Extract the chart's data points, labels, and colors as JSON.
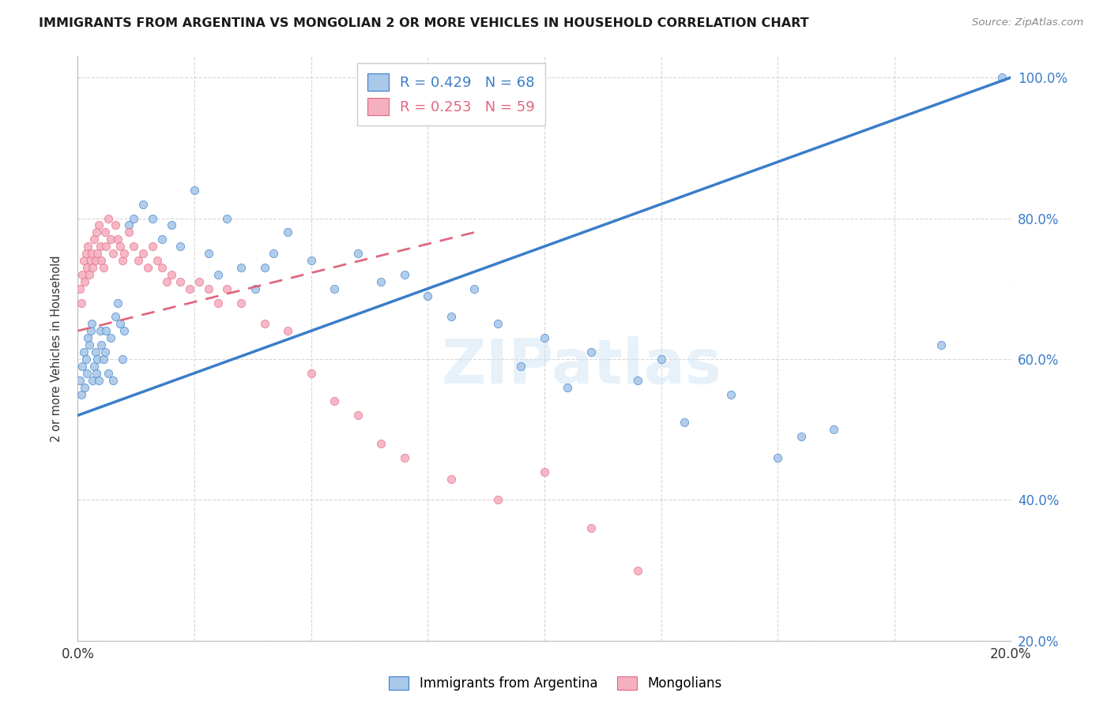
{
  "title": "IMMIGRANTS FROM ARGENTINA VS MONGOLIAN 2 OR MORE VEHICLES IN HOUSEHOLD CORRELATION CHART",
  "source": "Source: ZipAtlas.com",
  "ylabel": "2 or more Vehicles in Household",
  "color_blue": "#aac8e8",
  "color_pink": "#f5b0c0",
  "line_blue": "#3a7dc9",
  "line_pink": "#e06880",
  "legend_label_blue": "Immigrants from Argentina",
  "legend_label_pink": "Mongolians",
  "R_blue": "0.429",
  "N_blue": "68",
  "R_pink": "0.253",
  "N_pink": "59",
  "xmin": 0.0,
  "xmax": 20.0,
  "ymin": 20.0,
  "ymax": 103.0,
  "yticks": [
    20,
    40,
    60,
    80,
    100
  ],
  "ytick_labels": [
    "20.0%",
    "40.0%",
    "60.0%",
    "80.0%",
    "100.0%"
  ],
  "xtick_left": "0.0%",
  "xtick_right": "20.0%",
  "argentina_x": [
    0.05,
    0.08,
    0.1,
    0.12,
    0.15,
    0.18,
    0.2,
    0.22,
    0.25,
    0.28,
    0.3,
    0.32,
    0.35,
    0.38,
    0.4,
    0.42,
    0.45,
    0.48,
    0.5,
    0.55,
    0.58,
    0.6,
    0.65,
    0.7,
    0.75,
    0.8,
    0.85,
    0.9,
    0.95,
    1.0,
    1.1,
    1.2,
    1.4,
    1.6,
    1.8,
    2.0,
    2.2,
    2.5,
    2.8,
    3.0,
    3.2,
    3.5,
    3.8,
    4.0,
    4.2,
    4.5,
    5.0,
    5.5,
    6.0,
    6.5,
    7.0,
    7.5,
    8.0,
    8.5,
    9.0,
    9.5,
    10.0,
    10.5,
    11.0,
    12.0,
    12.5,
    13.0,
    14.0,
    15.0,
    15.5,
    16.2,
    18.5,
    19.8
  ],
  "argentina_y": [
    57,
    55,
    59,
    61,
    56,
    60,
    58,
    63,
    62,
    64,
    65,
    57,
    59,
    61,
    58,
    60,
    57,
    64,
    62,
    60,
    61,
    64,
    58,
    63,
    57,
    66,
    68,
    65,
    60,
    64,
    79,
    80,
    82,
    80,
    77,
    79,
    76,
    84,
    75,
    72,
    80,
    73,
    70,
    73,
    75,
    78,
    74,
    70,
    75,
    71,
    72,
    69,
    66,
    70,
    65,
    59,
    63,
    56,
    61,
    57,
    60,
    51,
    55,
    46,
    49,
    50,
    62,
    100
  ],
  "mongolian_x": [
    0.05,
    0.08,
    0.1,
    0.12,
    0.15,
    0.18,
    0.2,
    0.22,
    0.25,
    0.28,
    0.3,
    0.32,
    0.35,
    0.38,
    0.4,
    0.42,
    0.45,
    0.48,
    0.5,
    0.55,
    0.58,
    0.6,
    0.65,
    0.7,
    0.75,
    0.8,
    0.85,
    0.9,
    0.95,
    1.0,
    1.1,
    1.2,
    1.3,
    1.4,
    1.5,
    1.6,
    1.7,
    1.8,
    1.9,
    2.0,
    2.2,
    2.4,
    2.6,
    2.8,
    3.0,
    3.2,
    3.5,
    4.0,
    4.5,
    5.0,
    5.5,
    6.0,
    6.5,
    7.0,
    8.0,
    9.0,
    10.0,
    11.0,
    12.0
  ],
  "mongolian_y": [
    70,
    68,
    72,
    74,
    71,
    75,
    73,
    76,
    72,
    74,
    75,
    73,
    77,
    74,
    78,
    75,
    79,
    76,
    74,
    73,
    78,
    76,
    80,
    77,
    75,
    79,
    77,
    76,
    74,
    75,
    78,
    76,
    74,
    75,
    73,
    76,
    74,
    73,
    71,
    72,
    71,
    70,
    71,
    70,
    68,
    70,
    68,
    65,
    64,
    58,
    54,
    52,
    48,
    46,
    43,
    40,
    44,
    36,
    30
  ],
  "watermark_text": "ZIPatlas",
  "watermark_color": "#d0e4f5",
  "watermark_alpha": 0.5
}
